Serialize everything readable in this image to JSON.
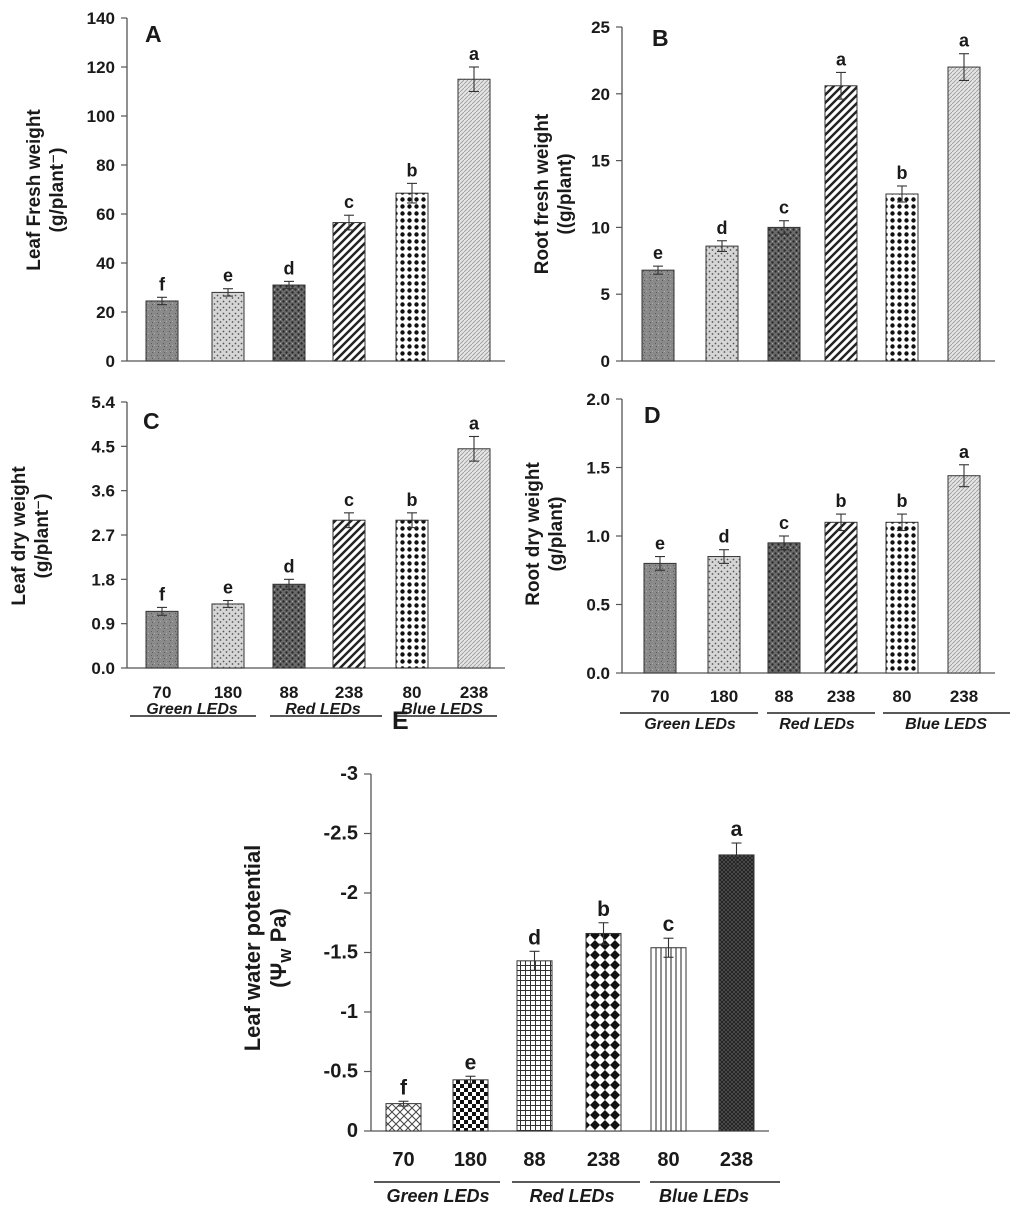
{
  "chart_data": [
    {
      "panel": "A",
      "type": "bar",
      "ylabel": [
        "Leaf Fresh weight",
        "(g/plant⁻)"
      ],
      "categories": [
        "70",
        "180",
        "88",
        "238",
        "80",
        "238"
      ],
      "values": [
        24.5,
        28.0,
        31.0,
        56.5,
        68.5,
        115.0
      ],
      "errors": [
        1.5,
        1.5,
        1.5,
        3.0,
        4.0,
        5.0
      ],
      "letters": [
        "f",
        "e",
        "d",
        "c",
        "b",
        "a"
      ],
      "ylim": [
        0,
        140
      ],
      "yticks": [
        0,
        20,
        40,
        60,
        80,
        100,
        120,
        140
      ],
      "ytick_labels": [
        "0",
        "20",
        "40",
        "60",
        "80",
        "100",
        "120",
        "140"
      ],
      "patterns": [
        "grain",
        "speckle",
        "cross",
        "diag",
        "dots",
        "fine"
      ]
    },
    {
      "panel": "B",
      "type": "bar",
      "ylabel": [
        "Root fresh weight",
        "((g/plant)"
      ],
      "categories": [
        "70",
        "180",
        "88",
        "238",
        "80",
        "238"
      ],
      "values": [
        6.8,
        8.6,
        10.0,
        20.6,
        12.5,
        22.0
      ],
      "errors": [
        0.3,
        0.4,
        0.5,
        1.0,
        0.6,
        1.0
      ],
      "letters": [
        "e",
        "d",
        "c",
        "a",
        "b",
        "a"
      ],
      "ylim": [
        0,
        25
      ],
      "yticks": [
        0,
        5,
        10,
        15,
        20,
        25
      ],
      "ytick_labels": [
        "0",
        "5",
        "10",
        "15",
        "20",
        "25"
      ],
      "patterns": [
        "grain",
        "speckle",
        "cross",
        "diag",
        "dots",
        "fine"
      ]
    },
    {
      "panel": "C",
      "type": "bar",
      "ylabel": [
        "Leaf dry weight",
        "(g/plant⁻)"
      ],
      "categories": [
        "70",
        "180",
        "88",
        "238",
        "80",
        "238"
      ],
      "values": [
        1.15,
        1.3,
        1.7,
        3.0,
        3.0,
        4.45
      ],
      "errors": [
        0.08,
        0.07,
        0.1,
        0.15,
        0.15,
        0.25
      ],
      "letters": [
        "f",
        "e",
        "d",
        "c",
        "b",
        "a"
      ],
      "ylim": [
        0,
        5.4
      ],
      "yticks": [
        0,
        0.9,
        1.8,
        2.7,
        3.6,
        4.5,
        5.4
      ],
      "ytick_labels": [
        "0.0",
        "0.9",
        "1.8",
        "2.7",
        "3.6",
        "4.5",
        "5.4"
      ],
      "groups": [
        "Green LEDs",
        "Red LEDs",
        "Blue LEDS"
      ],
      "patterns": [
        "grain",
        "speckle",
        "cross",
        "diag",
        "dots",
        "fine"
      ]
    },
    {
      "panel": "D",
      "type": "bar",
      "ylabel": [
        "Root dry weight",
        "(g/plant)"
      ],
      "categories": [
        "70",
        "180",
        "88",
        "238",
        "80",
        "238"
      ],
      "values": [
        0.8,
        0.85,
        0.95,
        1.1,
        1.1,
        1.44
      ],
      "errors": [
        0.05,
        0.05,
        0.05,
        0.06,
        0.06,
        0.08
      ],
      "letters": [
        "e",
        "d",
        "c",
        "b",
        "b",
        "a"
      ],
      "ylim": [
        0,
        2.0
      ],
      "yticks": [
        0,
        0.5,
        1.0,
        1.5,
        2.0
      ],
      "ytick_labels": [
        "0.0",
        "0.5",
        "1.0",
        "1.5",
        "2.0"
      ],
      "groups": [
        "Green LEDs",
        "Red LEDs",
        "Blue LEDS"
      ],
      "patterns": [
        "grain",
        "speckle",
        "cross",
        "diag",
        "dots",
        "fine"
      ]
    },
    {
      "panel": "E",
      "type": "bar",
      "ylabel": [
        "Leaf water potential",
        "(Ψ",
        "W",
        " Pa)"
      ],
      "categories": [
        "70",
        "180",
        "88",
        "238",
        "80",
        "238"
      ],
      "values": [
        -0.23,
        -0.43,
        -1.43,
        -1.66,
        -1.54,
        -2.32
      ],
      "errors": [
        0.02,
        0.03,
        0.08,
        0.09,
        0.08,
        0.1
      ],
      "letters": [
        "f",
        "e",
        "d",
        "b",
        "c",
        "a"
      ],
      "ylim": [
        0,
        -3
      ],
      "yticks": [
        0,
        -0.5,
        -1,
        -1.5,
        -2,
        -2.5,
        -3
      ],
      "ytick_labels": [
        "0",
        "-0.5",
        "-1",
        "-1.5",
        "-2",
        "-2.5",
        "-3"
      ],
      "groups": [
        "Green  LEDs",
        "Red LEDs",
        "Blue LEDs"
      ],
      "patterns": [
        "hatch",
        "checker",
        "grid",
        "diamond",
        "vlines",
        "dense"
      ]
    }
  ]
}
